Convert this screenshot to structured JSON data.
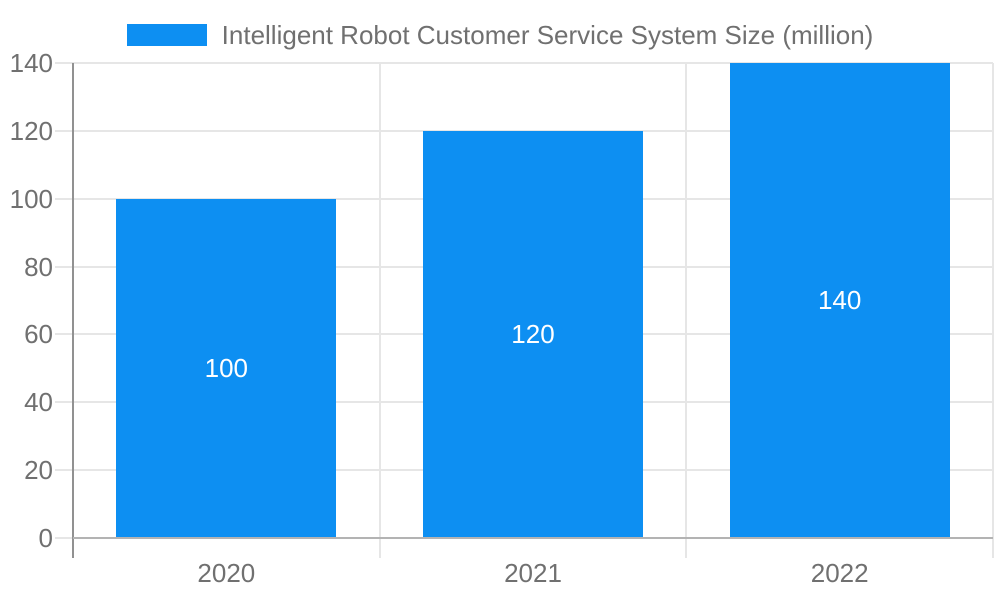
{
  "legend": {
    "label": "Intelligent Robot Customer Service System Size (million)"
  },
  "chart_data": {
    "type": "bar",
    "title": "",
    "categories": [
      "2020",
      "2021",
      "2022"
    ],
    "values": [
      100,
      120,
      140
    ],
    "series": [
      {
        "name": "Intelligent Robot Customer Service System Size (million)",
        "values": [
          100,
          120,
          140
        ]
      }
    ],
    "xlabel": "",
    "ylabel": "",
    "ylim": [
      0,
      140
    ],
    "yticks": [
      0,
      20,
      40,
      60,
      80,
      100,
      120,
      140
    ],
    "grid": true,
    "legend_position": "top-center",
    "data_labels": [
      "100",
      "120",
      "140"
    ],
    "data_label_position": "inside-center",
    "colors": {
      "bar": "#0d8ff2",
      "axis_text": "#707070",
      "legend_text": "#707070",
      "data_label_text": "#ffffff",
      "gridline": "#e6e6e6",
      "y_axis_line": "#919191",
      "x_axis_line": "#b3b3b3",
      "background": "#ffffff"
    }
  }
}
